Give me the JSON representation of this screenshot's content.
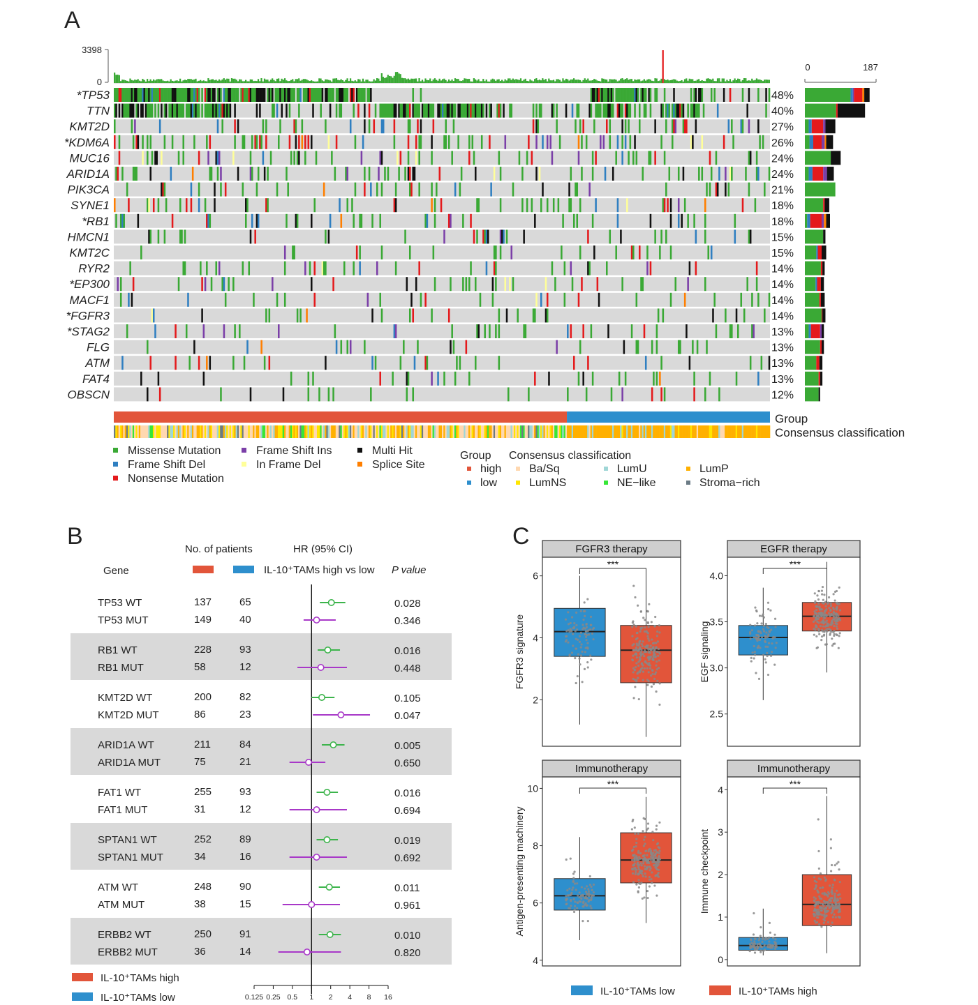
{
  "panel_labels": {
    "a": "A",
    "b": "B",
    "c": "C"
  },
  "colors": {
    "missense": "#3aa935",
    "frame_shift_del": "#2f7fc1",
    "nonsense": "#e41a1c",
    "frame_shift_ins": "#7b3fa8",
    "in_frame_del": "#ffff99",
    "multi_hit": "#111111",
    "splice_site": "#ff7f00",
    "background": "#d9d9d9",
    "high": "#e2553a",
    "low": "#2e8fcd",
    "basq": "#ffd8b0",
    "lumns": "#ffe600",
    "lumu": "#9fd6d6",
    "nelike": "#37e637",
    "lump": "#ffb000",
    "stroma": "#6b7b85",
    "hr_wt": "#3cb44b",
    "hr_mut": "#a838c8",
    "box_low": "#2e8fcd",
    "box_high": "#e2553a",
    "strip": "#cfcfcf"
  },
  "chart_data": [
    {
      "type": "heatmap",
      "title": "",
      "top_axis": {
        "max_label": "3398",
        "min_label": "0"
      },
      "right_axis": {
        "min_label": "0",
        "max_label": "187"
      },
      "genes": [
        {
          "label": "*TP53",
          "pct": "48%",
          "bar": [
            {
              "k": "missense",
              "v": 120
            },
            {
              "k": "frame_shift_del",
              "v": 6
            },
            {
              "k": "frame_shift_ins",
              "v": 3
            },
            {
              "k": "nonsense",
              "v": 22
            },
            {
              "k": "splice_site",
              "v": 5
            },
            {
              "k": "multi_hit",
              "v": 14
            }
          ]
        },
        {
          "label": "TTN",
          "pct": "40%",
          "bar": [
            {
              "k": "missense",
              "v": 82
            },
            {
              "k": "nonsense",
              "v": 4
            },
            {
              "k": "multi_hit",
              "v": 72
            }
          ]
        },
        {
          "label": "KMT2D",
          "pct": "27%",
          "bar": [
            {
              "k": "missense",
              "v": 10
            },
            {
              "k": "frame_shift_del",
              "v": 8
            },
            {
              "k": "nonsense",
              "v": 30
            },
            {
              "k": "frame_shift_ins",
              "v": 6
            },
            {
              "k": "multi_hit",
              "v": 26
            }
          ]
        },
        {
          "label": "*KDM6A",
          "pct": "26%",
          "bar": [
            {
              "k": "missense",
              "v": 12
            },
            {
              "k": "frame_shift_del",
              "v": 10
            },
            {
              "k": "nonsense",
              "v": 22
            },
            {
              "k": "frame_shift_ins",
              "v": 8
            },
            {
              "k": "splice_site",
              "v": 4
            },
            {
              "k": "multi_hit",
              "v": 18
            }
          ]
        },
        {
          "label": "MUC16",
          "pct": "24%",
          "bar": [
            {
              "k": "missense",
              "v": 68
            },
            {
              "k": "multi_hit",
              "v": 26
            }
          ]
        },
        {
          "label": "ARID1A",
          "pct": "24%",
          "bar": [
            {
              "k": "missense",
              "v": 10
            },
            {
              "k": "frame_shift_del",
              "v": 10
            },
            {
              "k": "nonsense",
              "v": 28
            },
            {
              "k": "frame_shift_ins",
              "v": 10
            },
            {
              "k": "multi_hit",
              "v": 18
            }
          ]
        },
        {
          "label": "PIK3CA",
          "pct": "21%",
          "bar": [
            {
              "k": "missense",
              "v": 80
            }
          ]
        },
        {
          "label": "SYNE1",
          "pct": "18%",
          "bar": [
            {
              "k": "missense",
              "v": 48
            },
            {
              "k": "nonsense",
              "v": 4
            },
            {
              "k": "multi_hit",
              "v": 12
            }
          ]
        },
        {
          "label": "*RB1",
          "pct": "18%",
          "bar": [
            {
              "k": "missense",
              "v": 6
            },
            {
              "k": "frame_shift_del",
              "v": 8
            },
            {
              "k": "nonsense",
              "v": 30
            },
            {
              "k": "frame_shift_ins",
              "v": 6
            },
            {
              "k": "splice_site",
              "v": 6
            },
            {
              "k": "multi_hit",
              "v": 10
            }
          ]
        },
        {
          "label": "HMCN1",
          "pct": "15%",
          "bar": [
            {
              "k": "missense",
              "v": 48
            },
            {
              "k": "multi_hit",
              "v": 6
            }
          ]
        },
        {
          "label": "KMT2C",
          "pct": "15%",
          "bar": [
            {
              "k": "missense",
              "v": 30
            },
            {
              "k": "frame_shift_del",
              "v": 4
            },
            {
              "k": "nonsense",
              "v": 10
            },
            {
              "k": "multi_hit",
              "v": 12
            }
          ]
        },
        {
          "label": "RYR2",
          "pct": "14%",
          "bar": [
            {
              "k": "missense",
              "v": 42
            },
            {
              "k": "nonsense",
              "v": 4
            },
            {
              "k": "multi_hit",
              "v": 6
            }
          ]
        },
        {
          "label": "*EP300",
          "pct": "14%",
          "bar": [
            {
              "k": "missense",
              "v": 28
            },
            {
              "k": "frame_shift_del",
              "v": 4
            },
            {
              "k": "nonsense",
              "v": 10
            },
            {
              "k": "multi_hit",
              "v": 8
            }
          ]
        },
        {
          "label": "MACF1",
          "pct": "14%",
          "bar": [
            {
              "k": "missense",
              "v": 38
            },
            {
              "k": "nonsense",
              "v": 4
            },
            {
              "k": "multi_hit",
              "v": 10
            }
          ]
        },
        {
          "label": "*FGFR3",
          "pct": "14%",
          "bar": [
            {
              "k": "missense",
              "v": 44
            },
            {
              "k": "nonsense",
              "v": 2
            },
            {
              "k": "multi_hit",
              "v": 8
            }
          ]
        },
        {
          "label": "*STAG2",
          "pct": "13%",
          "bar": [
            {
              "k": "missense",
              "v": 10
            },
            {
              "k": "frame_shift_del",
              "v": 6
            },
            {
              "k": "nonsense",
              "v": 24
            },
            {
              "k": "frame_shift_ins",
              "v": 4
            },
            {
              "k": "multi_hit",
              "v": 6
            }
          ]
        },
        {
          "label": "FLG",
          "pct": "13%",
          "bar": [
            {
              "k": "missense",
              "v": 40
            },
            {
              "k": "nonsense",
              "v": 4
            },
            {
              "k": "multi_hit",
              "v": 6
            }
          ]
        },
        {
          "label": "ATM",
          "pct": "13%",
          "bar": [
            {
              "k": "missense",
              "v": 30
            },
            {
              "k": "nonsense",
              "v": 8
            },
            {
              "k": "multi_hit",
              "v": 8
            }
          ]
        },
        {
          "label": "FAT4",
          "pct": "13%",
          "bar": [
            {
              "k": "missense",
              "v": 36
            },
            {
              "k": "nonsense",
              "v": 4
            },
            {
              "k": "multi_hit",
              "v": 6
            }
          ]
        },
        {
          "label": "OBSCN",
          "pct": "12%",
          "bar": [
            {
              "k": "missense",
              "v": 36
            },
            {
              "k": "multi_hit",
              "v": 4
            }
          ]
        }
      ],
      "annotation_tracks": [
        "Group",
        "Consensus classification"
      ],
      "legend_mutation": [
        {
          "label": "Missense  Mutation",
          "k": "missense"
        },
        {
          "label": "Frame  Shift  Del",
          "k": "frame_shift_del"
        },
        {
          "label": "Nonsense  Mutation",
          "k": "nonsense"
        },
        {
          "label": "Frame  Shift  Ins",
          "k": "frame_shift_ins"
        },
        {
          "label": "In  Frame  Del",
          "k": "in_frame_del"
        },
        {
          "label": "Multi  Hit",
          "k": "multi_hit"
        },
        {
          "label": "Splice  Site",
          "k": "splice_site"
        }
      ],
      "legend_group_title": "Group",
      "legend_group": [
        {
          "label": "high",
          "k": "high"
        },
        {
          "label": "low",
          "k": "low"
        }
      ],
      "legend_consensus_title": "Consensus classification",
      "legend_consensus": [
        {
          "label": "Ba/Sq",
          "k": "basq"
        },
        {
          "label": "LumNS",
          "k": "lumns"
        },
        {
          "label": "LumU",
          "k": "lumu"
        },
        {
          "label": "NE−like",
          "k": "nelike"
        },
        {
          "label": "LumP",
          "k": "lump"
        },
        {
          "label": "Stroma−rich",
          "k": "stroma"
        }
      ]
    },
    {
      "type": "table",
      "title": "",
      "headers": {
        "patients": "No. of patients",
        "hr": "HR (95% CI)",
        "gene": "Gene",
        "compare": "IL-10⁺TAMs high vs low",
        "p": "P value"
      },
      "x_ticks": [
        "0.125",
        "0.25",
        "0.5",
        "1",
        "2",
        "4",
        "8",
        "16"
      ],
      "x_tick_values": [
        0.125,
        0.25,
        0.5,
        1,
        2,
        4,
        8,
        16
      ],
      "rows": [
        {
          "gene": "TP53 WT",
          "high": "137",
          "low": "65",
          "hr": 2.05,
          "lo": 1.35,
          "hi": 3.4,
          "p": "0.028",
          "mut": false
        },
        {
          "gene": "TP53 MUT",
          "high": "149",
          "low": "40",
          "hr": 1.2,
          "lo": 0.75,
          "hi": 2.4,
          "p": "0.346",
          "mut": true
        },
        {
          "gene": "RB1 WT",
          "high": "228",
          "low": "93",
          "hr": 1.8,
          "lo": 1.25,
          "hi": 2.8,
          "p": "0.016",
          "mut": false
        },
        {
          "gene": "RB1 MUT",
          "high": "58",
          "low": "12",
          "hr": 1.4,
          "lo": 0.6,
          "hi": 3.6,
          "p": "0.448",
          "mut": true
        },
        {
          "gene": "KMT2D WT",
          "high": "200",
          "low": "82",
          "hr": 1.45,
          "lo": 1.0,
          "hi": 2.3,
          "p": "0.105",
          "mut": false
        },
        {
          "gene": "KMT2D MUT",
          "high": "86",
          "low": "23",
          "hr": 2.9,
          "lo": 1.05,
          "hi": 8.3,
          "p": "0.047",
          "mut": true
        },
        {
          "gene": "ARID1A WT",
          "high": "211",
          "low": "84",
          "hr": 2.2,
          "lo": 1.45,
          "hi": 3.3,
          "p": "0.005",
          "mut": false
        },
        {
          "gene": "ARID1A MUT",
          "high": "75",
          "low": "21",
          "hr": 0.9,
          "lo": 0.45,
          "hi": 1.65,
          "p": "0.650",
          "mut": true
        },
        {
          "gene": "FAT1 WT",
          "high": "255",
          "low": "93",
          "hr": 1.75,
          "lo": 1.2,
          "hi": 2.6,
          "p": "0.016",
          "mut": false
        },
        {
          "gene": "FAT1 MUT",
          "high": "31",
          "low": "12",
          "hr": 1.2,
          "lo": 0.45,
          "hi": 3.6,
          "p": "0.694",
          "mut": true
        },
        {
          "gene": "SPTAN1 WT",
          "high": "252",
          "low": "89",
          "hr": 1.75,
          "lo": 1.2,
          "hi": 2.6,
          "p": "0.019",
          "mut": false
        },
        {
          "gene": "SPTAN1 MUT",
          "high": "34",
          "low": "16",
          "hr": 1.2,
          "lo": 0.45,
          "hi": 3.6,
          "p": "0.692",
          "mut": true
        },
        {
          "gene": "ATM WT",
          "high": "248",
          "low": "90",
          "hr": 1.9,
          "lo": 1.3,
          "hi": 2.8,
          "p": "0.011",
          "mut": false
        },
        {
          "gene": "ATM MUT",
          "high": "38",
          "low": "15",
          "hr": 1.0,
          "lo": 0.35,
          "hi": 2.8,
          "p": "0.961",
          "mut": true
        },
        {
          "gene": "ERBB2 WT",
          "high": "250",
          "low": "91",
          "hr": 1.95,
          "lo": 1.3,
          "hi": 2.9,
          "p": "0.010",
          "mut": false
        },
        {
          "gene": "ERBB2 MUT",
          "high": "36",
          "low": "14",
          "hr": 0.85,
          "lo": 0.3,
          "hi": 2.9,
          "p": "0.820",
          "mut": true
        }
      ],
      "legend": [
        {
          "label": "IL-10⁺TAMs high",
          "k": "high"
        },
        {
          "label": "IL-10⁺TAMs low",
          "k": "low"
        }
      ]
    },
    {
      "type": "box",
      "title": "FGFR3 therapy",
      "ylabel": "FGFR3 signature",
      "yticks": [
        2,
        4,
        6
      ],
      "ylim": [
        0.5,
        6.6
      ],
      "signif": "***",
      "boxes": [
        {
          "group": "low",
          "whisker_low": 1.2,
          "q1": 3.4,
          "median": 4.2,
          "q3": 4.95,
          "whisker_high": 6.0
        },
        {
          "group": "high",
          "whisker_low": 0.8,
          "q1": 2.55,
          "median": 3.6,
          "q3": 4.4,
          "whisker_high": 6.2
        }
      ]
    },
    {
      "type": "box",
      "title": "EGFR therapy",
      "ylabel": "EGF signaling",
      "yticks": [
        2.5,
        3.0,
        3.5,
        4.0
      ],
      "ytick_labels": [
        "2.5",
        "3.0",
        "3.5",
        "4.0"
      ],
      "ylim": [
        2.15,
        4.2
      ],
      "signif": "***",
      "boxes": [
        {
          "group": "low",
          "whisker_low": 2.65,
          "q1": 3.14,
          "median": 3.33,
          "q3": 3.46,
          "whisker_high": 3.87
        },
        {
          "group": "high",
          "whisker_low": 2.95,
          "q1": 3.4,
          "median": 3.56,
          "q3": 3.71,
          "whisker_high": 4.15
        }
      ]
    },
    {
      "type": "box",
      "title": "Immunotherapy",
      "ylabel": "Antigen-presenting machinery",
      "yticks": [
        4,
        6,
        8,
        10
      ],
      "ylim": [
        3.8,
        10.4
      ],
      "signif": "***",
      "boxes": [
        {
          "group": "low",
          "whisker_low": 4.7,
          "q1": 5.75,
          "median": 6.25,
          "q3": 6.85,
          "whisker_high": 8.3
        },
        {
          "group": "high",
          "whisker_low": 5.3,
          "q1": 6.7,
          "median": 7.5,
          "q3": 8.45,
          "whisker_high": 9.7
        }
      ]
    },
    {
      "type": "box",
      "title": "Immunotherapy",
      "ylabel": "Immune checkpoint",
      "yticks": [
        0,
        1,
        2,
        3,
        4
      ],
      "ylim": [
        -0.15,
        4.3
      ],
      "signif": "***",
      "boxes": [
        {
          "group": "low",
          "whisker_low": 0.1,
          "q1": 0.22,
          "median": 0.33,
          "q3": 0.52,
          "whisker_high": 1.2
        },
        {
          "group": "high",
          "whisker_low": 0.15,
          "q1": 0.8,
          "median": 1.3,
          "q3": 2.0,
          "whisker_high": 3.85
        }
      ]
    }
  ],
  "c_legend": [
    {
      "label": "IL-10⁺TAMs low",
      "k": "low"
    },
    {
      "label": "IL-10⁺TAMs high",
      "k": "high"
    }
  ]
}
